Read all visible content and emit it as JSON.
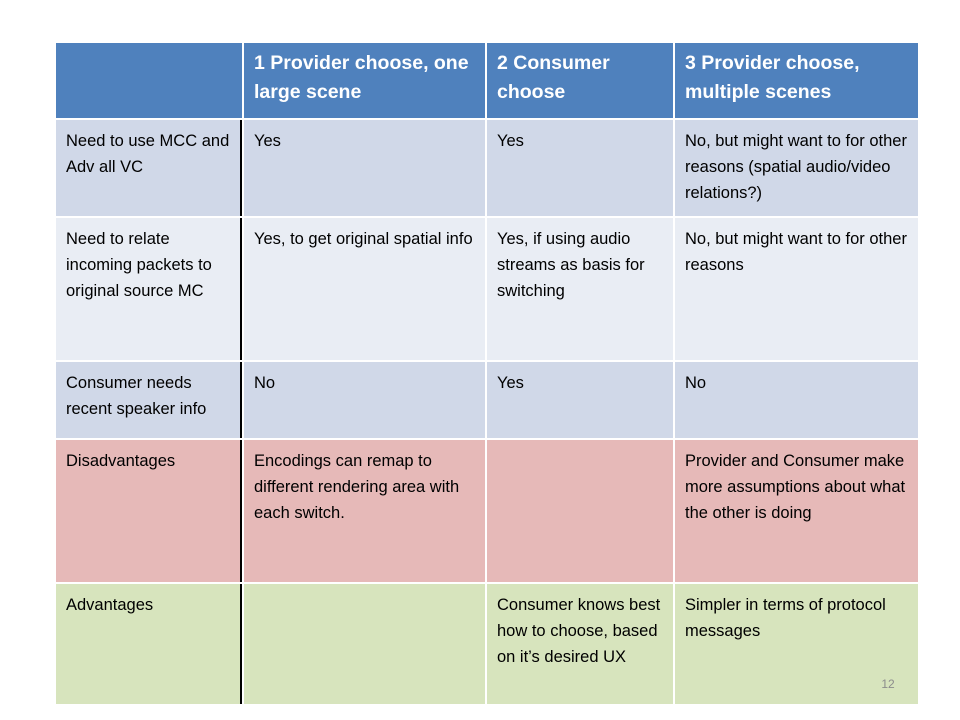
{
  "table": {
    "header": [
      "",
      "1 Provider choose, one large scene",
      "2 Consumer choose",
      "3 Provider choose, multiple scenes"
    ],
    "rows": [
      {
        "label": "Need to use MCC and Adv all VC",
        "cells": [
          "Yes",
          "Yes",
          "No, but might want to for other reasons (spatial audio/video relations?)"
        ]
      },
      {
        "label": "Need to relate incoming packets to original source MC",
        "cells": [
          "Yes, to get original spatial info",
          "Yes, if using audio streams as basis for switching",
          "No, but might want to for other reasons"
        ]
      },
      {
        "label": "Consumer needs recent speaker info",
        "cells": [
          "No",
          "Yes",
          "No"
        ]
      },
      {
        "label": "Disadvantages",
        "cells": [
          "Encodings can remap to different rendering area with each switch.",
          "",
          "Provider and Consumer make more assumptions about what the other is doing"
        ]
      },
      {
        "label": "Advantages",
        "cells": [
          "",
          "Consumer knows best how to choose, based on it’s desired UX",
          "Simpler in terms of protocol messages"
        ]
      }
    ],
    "colors": {
      "header": "#4f81bd",
      "band_dark": "#d0d8e8",
      "band_light": "#e9edf4",
      "disadvantages": "#e6b9b8",
      "advantages": "#d7e4bd"
    }
  },
  "page_number": "12"
}
